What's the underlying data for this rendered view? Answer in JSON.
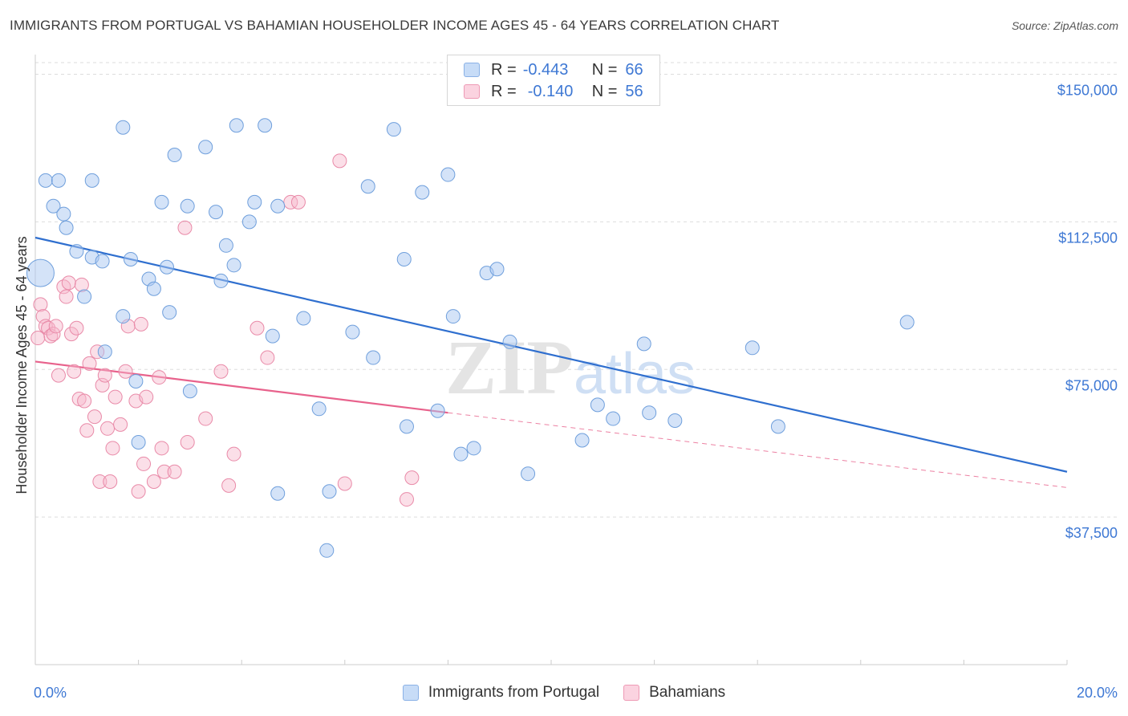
{
  "header": {
    "title": "IMMIGRANTS FROM PORTUGAL VS BAHAMIAN HOUSEHOLDER INCOME AGES 45 - 64 YEARS CORRELATION CHART",
    "source": "Source: ZipAtlas.com"
  },
  "legend": {
    "r_label": "R =",
    "n_label": "N =",
    "rows": [
      {
        "r": "-0.443",
        "n": "66",
        "color": "#a9c8f2"
      },
      {
        "r": "-0.140",
        "n": "56",
        "color": "#f7b8cc"
      }
    ]
  },
  "bottom_legend": {
    "items": [
      {
        "label": "Immigrants from Portugal",
        "color": "#a9c8f2"
      },
      {
        "label": "Bahamians",
        "color": "#f7b8cc"
      }
    ]
  },
  "watermark": {
    "zip": "ZIP",
    "atlas": "atlas"
  },
  "chart_data": {
    "type": "scatter",
    "title": "IMMIGRANTS FROM PORTUGAL VS BAHAMIAN HOUSEHOLDER INCOME AGES 45 - 64 YEARS CORRELATION CHART",
    "xlabel": "",
    "ylabel": "Householder Income Ages 45 - 64 years",
    "xlim": [
      0,
      20
    ],
    "ylim": [
      0,
      155000
    ],
    "x_unit": "%",
    "x_tick_labels": [
      "0.0%",
      "20.0%"
    ],
    "y_ticks": [
      37500,
      75000,
      112500,
      150000
    ],
    "y_tick_labels": [
      "$37,500",
      "$75,000",
      "$112,500",
      "$150,000"
    ],
    "grid": true,
    "legend_position": "top-center",
    "colors": {
      "blue": "#a9c8f2",
      "blue_stroke": "#6f9fdc",
      "blue_line": "#2f6fcf",
      "pink": "#f7b8cc",
      "pink_stroke": "#e98aa8",
      "pink_line": "#e8628c",
      "axis_text": "#3e78d4"
    },
    "series": [
      {
        "name": "Immigrants from Portugal",
        "r": -0.443,
        "n": 66,
        "trend": {
          "x": [
            0,
            20
          ],
          "y": [
            108500,
            49000
          ],
          "style": "solid"
        },
        "points": [
          [
            0.1,
            99500
          ],
          [
            0.2,
            123000
          ],
          [
            0.45,
            123000
          ],
          [
            0.35,
            116500
          ],
          [
            0.6,
            111000
          ],
          [
            0.55,
            114500
          ],
          [
            0.8,
            105000
          ],
          [
            1.1,
            103500
          ],
          [
            0.95,
            93500
          ],
          [
            1.3,
            102500
          ],
          [
            1.7,
            136500
          ],
          [
            1.85,
            103000
          ],
          [
            1.7,
            88500
          ],
          [
            2.2,
            98000
          ],
          [
            2.3,
            95500
          ],
          [
            2.45,
            117500
          ],
          [
            2.55,
            101000
          ],
          [
            2.6,
            89500
          ],
          [
            2.7,
            129500
          ],
          [
            2.95,
            116500
          ],
          [
            3.0,
            69500
          ],
          [
            3.3,
            131500
          ],
          [
            3.5,
            115000
          ],
          [
            3.6,
            97500
          ],
          [
            3.7,
            106500
          ],
          [
            3.85,
            101500
          ],
          [
            3.9,
            137000
          ],
          [
            4.15,
            112500
          ],
          [
            4.25,
            117500
          ],
          [
            4.45,
            137000
          ],
          [
            4.6,
            83500
          ],
          [
            4.7,
            116500
          ],
          [
            5.2,
            88000
          ],
          [
            5.5,
            65000
          ],
          [
            5.65,
            29000
          ],
          [
            5.7,
            44000
          ],
          [
            6.15,
            84500
          ],
          [
            6.45,
            121500
          ],
          [
            6.55,
            78000
          ],
          [
            6.95,
            136000
          ],
          [
            7.15,
            103000
          ],
          [
            7.2,
            60500
          ],
          [
            7.5,
            120000
          ],
          [
            7.8,
            64500
          ],
          [
            8.0,
            124500
          ],
          [
            8.1,
            88500
          ],
          [
            8.25,
            53500
          ],
          [
            8.5,
            55000
          ],
          [
            8.75,
            99500
          ],
          [
            8.95,
            100500
          ],
          [
            9.2,
            82000
          ],
          [
            9.55,
            48500
          ],
          [
            10.6,
            57000
          ],
          [
            10.9,
            66000
          ],
          [
            11.2,
            62500
          ],
          [
            11.8,
            81500
          ],
          [
            11.9,
            64000
          ],
          [
            12.4,
            62000
          ],
          [
            13.9,
            80500
          ],
          [
            14.4,
            60500
          ],
          [
            16.9,
            87000
          ],
          [
            1.35,
            79500
          ],
          [
            1.95,
            72000
          ],
          [
            2.0,
            56500
          ],
          [
            1.1,
            123000
          ],
          [
            4.7,
            43500
          ]
        ]
      },
      {
        "name": "Bahamians",
        "r": -0.14,
        "n": 56,
        "trend": {
          "x": [
            0,
            8.0
          ],
          "y": [
            77000,
            64000
          ],
          "x_dashed": [
            8.0,
            20
          ],
          "y_dashed": [
            64000,
            45000
          ],
          "style": "solid-then-dashed"
        },
        "points": [
          [
            0.1,
            91500
          ],
          [
            0.15,
            88500
          ],
          [
            0.2,
            86000
          ],
          [
            0.25,
            85500
          ],
          [
            0.3,
            83500
          ],
          [
            0.35,
            84000
          ],
          [
            0.4,
            86000
          ],
          [
            0.45,
            73500
          ],
          [
            0.55,
            96000
          ],
          [
            0.6,
            93500
          ],
          [
            0.65,
            97000
          ],
          [
            0.7,
            84000
          ],
          [
            0.75,
            74500
          ],
          [
            0.8,
            85500
          ],
          [
            0.85,
            67500
          ],
          [
            0.9,
            96500
          ],
          [
            0.95,
            67000
          ],
          [
            1.0,
            59500
          ],
          [
            1.05,
            76500
          ],
          [
            1.15,
            63000
          ],
          [
            1.2,
            79500
          ],
          [
            1.25,
            46500
          ],
          [
            1.3,
            71000
          ],
          [
            1.35,
            73500
          ],
          [
            1.4,
            60000
          ],
          [
            1.45,
            46500
          ],
          [
            1.5,
            55000
          ],
          [
            1.55,
            68000
          ],
          [
            1.65,
            61000
          ],
          [
            1.75,
            74500
          ],
          [
            1.8,
            86000
          ],
          [
            1.95,
            67000
          ],
          [
            2.0,
            44000
          ],
          [
            2.05,
            86500
          ],
          [
            2.1,
            51000
          ],
          [
            2.15,
            68000
          ],
          [
            2.3,
            46500
          ],
          [
            2.4,
            73000
          ],
          [
            2.45,
            55000
          ],
          [
            2.5,
            49000
          ],
          [
            2.7,
            49000
          ],
          [
            2.9,
            111000
          ],
          [
            2.95,
            56500
          ],
          [
            3.3,
            62500
          ],
          [
            3.6,
            74500
          ],
          [
            3.75,
            45500
          ],
          [
            3.85,
            53500
          ],
          [
            4.3,
            85500
          ],
          [
            4.5,
            78000
          ],
          [
            4.95,
            117500
          ],
          [
            5.1,
            117500
          ],
          [
            5.9,
            128000
          ],
          [
            6.0,
            46000
          ],
          [
            7.2,
            42000
          ],
          [
            7.3,
            47500
          ],
          [
            0.05,
            83000
          ]
        ]
      }
    ]
  }
}
